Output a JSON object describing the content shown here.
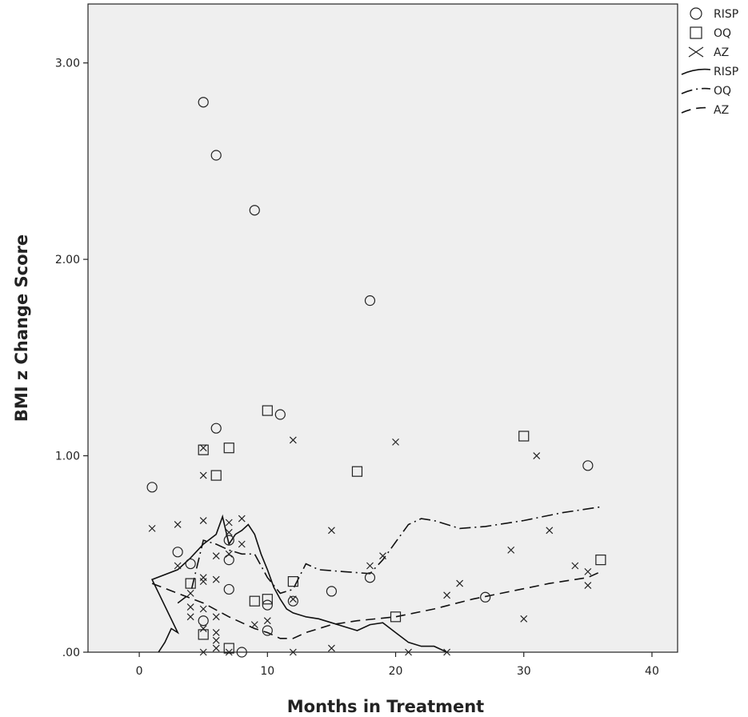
{
  "chart_data": {
    "type": "scatter",
    "title": "",
    "xlabel": "Months in Treatment",
    "ylabel": "BMI z Change Score",
    "xlim": [
      -4,
      42
    ],
    "ylim": [
      0,
      3.3
    ],
    "x_ticks": [
      0,
      10,
      20,
      30,
      40
    ],
    "x_tick_labels": [
      "0",
      "10",
      "20",
      "30",
      "40"
    ],
    "y_ticks": [
      0,
      1,
      2,
      3
    ],
    "y_tick_labels": [
      ".00",
      "1.00",
      "2.00",
      "3.00"
    ],
    "grid": false,
    "plot_background": "#efefef",
    "legend_position": "top-right, outside plot",
    "legend": [
      {
        "label": "RISP",
        "kind": "marker",
        "marker": "circle"
      },
      {
        "label": "OQ",
        "kind": "marker",
        "marker": "square"
      },
      {
        "label": "AZ",
        "kind": "marker",
        "marker": "x"
      },
      {
        "label": "RISP",
        "kind": "line",
        "dash": "solid"
      },
      {
        "label": "OQ",
        "kind": "line",
        "dash": "dashdot"
      },
      {
        "label": "AZ",
        "kind": "line",
        "dash": "dashed"
      }
    ],
    "scatter_series": [
      {
        "name": "RISP",
        "marker": "circle",
        "points": [
          [
            1,
            0.84
          ],
          [
            3,
            0.51
          ],
          [
            4,
            0.45
          ],
          [
            5,
            2.8
          ],
          [
            5,
            0.16
          ],
          [
            6,
            2.53
          ],
          [
            6,
            1.14
          ],
          [
            7,
            0.47
          ],
          [
            7,
            0.32
          ],
          [
            7,
            0.57
          ],
          [
            9,
            2.25
          ],
          [
            10,
            0.24
          ],
          [
            10,
            0.11
          ],
          [
            11,
            1.21
          ],
          [
            12,
            0.26
          ],
          [
            15,
            0.31
          ],
          [
            18,
            1.79
          ],
          [
            18,
            0.38
          ],
          [
            27,
            0.28
          ],
          [
            35,
            0.95
          ],
          [
            8,
            0.0
          ]
        ]
      },
      {
        "name": "OQ",
        "marker": "square",
        "points": [
          [
            4,
            0.35
          ],
          [
            5,
            1.03
          ],
          [
            5,
            0.09
          ],
          [
            6,
            0.9
          ],
          [
            7,
            1.04
          ],
          [
            7,
            0.02
          ],
          [
            9,
            0.26
          ],
          [
            10,
            1.23
          ],
          [
            10,
            0.27
          ],
          [
            12,
            0.36
          ],
          [
            17,
            0.92
          ],
          [
            20,
            0.18
          ],
          [
            30,
            1.1
          ],
          [
            36,
            0.47
          ]
        ]
      },
      {
        "name": "AZ",
        "marker": "x",
        "points": [
          [
            1,
            0.63
          ],
          [
            3,
            0.65
          ],
          [
            3,
            0.44
          ],
          [
            4,
            0.23
          ],
          [
            4,
            0.18
          ],
          [
            4,
            0.3
          ],
          [
            5,
            1.04
          ],
          [
            5,
            0.9
          ],
          [
            5,
            0.67
          ],
          [
            5,
            0.38
          ],
          [
            5,
            0.36
          ],
          [
            5,
            0.22
          ],
          [
            5,
            0.12
          ],
          [
            5,
            0.0
          ],
          [
            6,
            0.49
          ],
          [
            6,
            0.37
          ],
          [
            6,
            0.18
          ],
          [
            6,
            0.1
          ],
          [
            6,
            0.06
          ],
          [
            6,
            0.02
          ],
          [
            7,
            0.66
          ],
          [
            7,
            0.61
          ],
          [
            7,
            0.5
          ],
          [
            7,
            0.0
          ],
          [
            8,
            0.68
          ],
          [
            8,
            0.55
          ],
          [
            9,
            0.14
          ],
          [
            10,
            0.16
          ],
          [
            12,
            1.08
          ],
          [
            12,
            0.27
          ],
          [
            12,
            0.0
          ],
          [
            15,
            0.62
          ],
          [
            15,
            0.02
          ],
          [
            18,
            0.44
          ],
          [
            19,
            0.49
          ],
          [
            20,
            1.07
          ],
          [
            21,
            0.0
          ],
          [
            24,
            0.29
          ],
          [
            24,
            0.0
          ],
          [
            25,
            0.35
          ],
          [
            29,
            0.52
          ],
          [
            30,
            0.17
          ],
          [
            31,
            1.0
          ],
          [
            32,
            0.62
          ],
          [
            34,
            0.44
          ],
          [
            35,
            0.41
          ],
          [
            35,
            0.34
          ]
        ]
      }
    ],
    "line_series": [
      {
        "name": "RISP",
        "dash": "solid",
        "points": [
          [
            1.5,
            0.0
          ],
          [
            2,
            0.05
          ],
          [
            2.5,
            0.12
          ],
          [
            3,
            0.1
          ],
          [
            1,
            0.37
          ],
          [
            3,
            0.42
          ],
          [
            4,
            0.48
          ],
          [
            5,
            0.55
          ],
          [
            6,
            0.6
          ],
          [
            6.5,
            0.69
          ],
          [
            7,
            0.55
          ],
          [
            7.5,
            0.6
          ],
          [
            8,
            0.62
          ],
          [
            8.5,
            0.65
          ],
          [
            9,
            0.6
          ],
          [
            9.5,
            0.5
          ],
          [
            10,
            0.42
          ],
          [
            10.5,
            0.33
          ],
          [
            11,
            0.27
          ],
          [
            11.5,
            0.22
          ],
          [
            12,
            0.2
          ],
          [
            13,
            0.18
          ],
          [
            14,
            0.17
          ],
          [
            15,
            0.15
          ],
          [
            16,
            0.13
          ],
          [
            17,
            0.11
          ],
          [
            18,
            0.14
          ],
          [
            19,
            0.15
          ],
          [
            20,
            0.1
          ],
          [
            21,
            0.05
          ],
          [
            22,
            0.03
          ],
          [
            23,
            0.03
          ],
          [
            24,
            0.0
          ]
        ]
      },
      {
        "name": "OQ",
        "dash": "dashdot",
        "points": [
          [
            3,
            0.25
          ],
          [
            4,
            0.3
          ],
          [
            5,
            0.57
          ],
          [
            6,
            0.55
          ],
          [
            7,
            0.52
          ],
          [
            8,
            0.5
          ],
          [
            9,
            0.5
          ],
          [
            10,
            0.38
          ],
          [
            11,
            0.3
          ],
          [
            12,
            0.32
          ],
          [
            13,
            0.45
          ],
          [
            14,
            0.42
          ],
          [
            16,
            0.41
          ],
          [
            18,
            0.4
          ],
          [
            19,
            0.47
          ],
          [
            20,
            0.56
          ],
          [
            21,
            0.65
          ],
          [
            22,
            0.68
          ],
          [
            23,
            0.67
          ],
          [
            25,
            0.63
          ],
          [
            27,
            0.64
          ],
          [
            30,
            0.67
          ],
          [
            33,
            0.71
          ],
          [
            36,
            0.74
          ]
        ]
      },
      {
        "name": "AZ",
        "dash": "dashed",
        "points": [
          [
            1,
            0.35
          ],
          [
            3,
            0.3
          ],
          [
            5,
            0.25
          ],
          [
            7,
            0.18
          ],
          [
            9,
            0.12
          ],
          [
            10,
            0.1
          ],
          [
            11,
            0.07
          ],
          [
            12,
            0.07
          ],
          [
            13,
            0.1
          ],
          [
            15,
            0.14
          ],
          [
            17,
            0.16
          ],
          [
            20,
            0.18
          ],
          [
            23,
            0.22
          ],
          [
            26,
            0.27
          ],
          [
            29,
            0.31
          ],
          [
            32,
            0.35
          ],
          [
            35,
            0.38
          ],
          [
            36,
            0.41
          ]
        ]
      }
    ]
  }
}
